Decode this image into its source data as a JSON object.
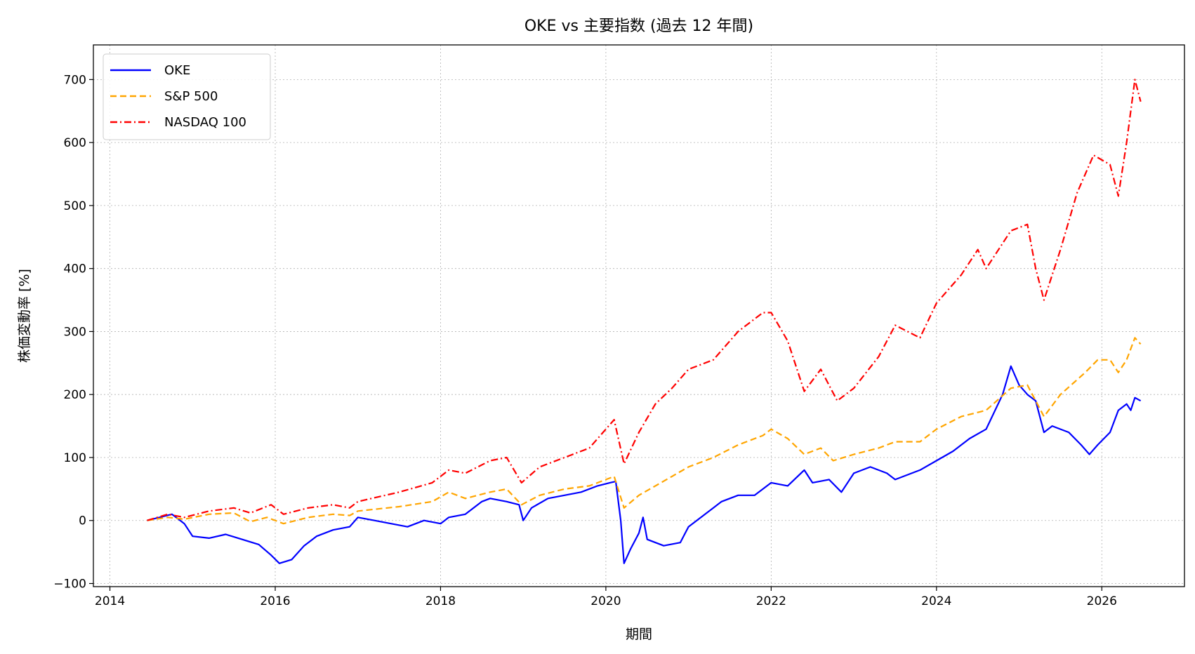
{
  "chart_data": {
    "type": "line",
    "title": "OKE vs 主要指数 (過去 12 年間)",
    "xlabel": "期間",
    "ylabel": "株価変動率 [%]",
    "xlim": [
      2013.8,
      2027.0
    ],
    "ylim": [
      -105,
      755
    ],
    "xticks": [
      2014,
      2016,
      2018,
      2020,
      2022,
      2024,
      2026
    ],
    "yticks": [
      -100,
      0,
      100,
      200,
      300,
      400,
      500,
      600,
      700
    ],
    "grid": true,
    "legend_position": "top-left",
    "series": [
      {
        "name": "OKE",
        "color": "#0000ff",
        "style": "solid",
        "points": [
          [
            2014.45,
            0
          ],
          [
            2014.6,
            5
          ],
          [
            2014.75,
            10
          ],
          [
            2014.9,
            -5
          ],
          [
            2015.0,
            -25
          ],
          [
            2015.2,
            -28
          ],
          [
            2015.4,
            -22
          ],
          [
            2015.6,
            -30
          ],
          [
            2015.8,
            -38
          ],
          [
            2015.95,
            -55
          ],
          [
            2016.05,
            -68
          ],
          [
            2016.2,
            -62
          ],
          [
            2016.35,
            -40
          ],
          [
            2016.5,
            -25
          ],
          [
            2016.7,
            -15
          ],
          [
            2016.9,
            -10
          ],
          [
            2017.0,
            5
          ],
          [
            2017.2,
            0
          ],
          [
            2017.4,
            -5
          ],
          [
            2017.6,
            -10
          ],
          [
            2017.8,
            0
          ],
          [
            2018.0,
            -5
          ],
          [
            2018.1,
            5
          ],
          [
            2018.3,
            10
          ],
          [
            2018.5,
            30
          ],
          [
            2018.6,
            35
          ],
          [
            2018.8,
            30
          ],
          [
            2018.95,
            25
          ],
          [
            2019.0,
            0
          ],
          [
            2019.1,
            20
          ],
          [
            2019.3,
            35
          ],
          [
            2019.5,
            40
          ],
          [
            2019.7,
            45
          ],
          [
            2019.9,
            55
          ],
          [
            2020.05,
            60
          ],
          [
            2020.12,
            62
          ],
          [
            2020.18,
            0
          ],
          [
            2020.22,
            -68
          ],
          [
            2020.3,
            -45
          ],
          [
            2020.4,
            -20
          ],
          [
            2020.45,
            5
          ],
          [
            2020.5,
            -30
          ],
          [
            2020.7,
            -40
          ],
          [
            2020.9,
            -35
          ],
          [
            2021.0,
            -10
          ],
          [
            2021.2,
            10
          ],
          [
            2021.4,
            30
          ],
          [
            2021.6,
            40
          ],
          [
            2021.8,
            40
          ],
          [
            2022.0,
            60
          ],
          [
            2022.2,
            55
          ],
          [
            2022.4,
            80
          ],
          [
            2022.5,
            60
          ],
          [
            2022.7,
            65
          ],
          [
            2022.85,
            45
          ],
          [
            2023.0,
            75
          ],
          [
            2023.2,
            85
          ],
          [
            2023.4,
            75
          ],
          [
            2023.5,
            65
          ],
          [
            2023.6,
            70
          ],
          [
            2023.8,
            80
          ],
          [
            2024.0,
            95
          ],
          [
            2024.2,
            110
          ],
          [
            2024.4,
            130
          ],
          [
            2024.6,
            145
          ],
          [
            2024.8,
            200
          ],
          [
            2024.9,
            245
          ],
          [
            2025.0,
            215
          ],
          [
            2025.1,
            200
          ],
          [
            2025.2,
            190
          ],
          [
            2025.3,
            140
          ],
          [
            2025.4,
            150
          ],
          [
            2025.6,
            140
          ],
          [
            2025.75,
            120
          ],
          [
            2025.85,
            105
          ],
          [
            2025.95,
            120
          ],
          [
            2026.1,
            140
          ],
          [
            2026.2,
            175
          ],
          [
            2026.3,
            185
          ],
          [
            2026.35,
            175
          ],
          [
            2026.4,
            195
          ],
          [
            2026.47,
            190
          ]
        ]
      },
      {
        "name": "S&P 500",
        "color": "#ffa500",
        "style": "dashed",
        "points": [
          [
            2014.45,
            0
          ],
          [
            2014.7,
            5
          ],
          [
            2014.9,
            2
          ],
          [
            2015.2,
            10
          ],
          [
            2015.5,
            12
          ],
          [
            2015.7,
            -2
          ],
          [
            2015.9,
            5
          ],
          [
            2016.1,
            -5
          ],
          [
            2016.4,
            5
          ],
          [
            2016.7,
            10
          ],
          [
            2016.9,
            8
          ],
          [
            2017.0,
            15
          ],
          [
            2017.5,
            22
          ],
          [
            2017.9,
            30
          ],
          [
            2018.1,
            45
          ],
          [
            2018.3,
            35
          ],
          [
            2018.6,
            45
          ],
          [
            2018.8,
            50
          ],
          [
            2018.98,
            25
          ],
          [
            2019.2,
            40
          ],
          [
            2019.5,
            50
          ],
          [
            2019.8,
            55
          ],
          [
            2020.1,
            70
          ],
          [
            2020.22,
            20
          ],
          [
            2020.4,
            40
          ],
          [
            2020.6,
            55
          ],
          [
            2020.8,
            70
          ],
          [
            2021.0,
            85
          ],
          [
            2021.3,
            100
          ],
          [
            2021.6,
            120
          ],
          [
            2021.9,
            135
          ],
          [
            2022.0,
            145
          ],
          [
            2022.2,
            130
          ],
          [
            2022.4,
            105
          ],
          [
            2022.6,
            115
          ],
          [
            2022.75,
            95
          ],
          [
            2023.0,
            105
          ],
          [
            2023.3,
            115
          ],
          [
            2023.5,
            125
          ],
          [
            2023.8,
            125
          ],
          [
            2024.0,
            145
          ],
          [
            2024.3,
            165
          ],
          [
            2024.6,
            175
          ],
          [
            2024.9,
            210
          ],
          [
            2025.1,
            215
          ],
          [
            2025.3,
            165
          ],
          [
            2025.5,
            200
          ],
          [
            2025.8,
            235
          ],
          [
            2025.95,
            255
          ],
          [
            2026.1,
            255
          ],
          [
            2026.2,
            235
          ],
          [
            2026.3,
            255
          ],
          [
            2026.4,
            290
          ],
          [
            2026.47,
            280
          ]
        ]
      },
      {
        "name": "NASDAQ 100",
        "color": "#ff0000",
        "style": "dashdot",
        "points": [
          [
            2014.45,
            0
          ],
          [
            2014.7,
            10
          ],
          [
            2014.9,
            5
          ],
          [
            2015.2,
            15
          ],
          [
            2015.5,
            20
          ],
          [
            2015.7,
            12
          ],
          [
            2015.95,
            25
          ],
          [
            2016.1,
            10
          ],
          [
            2016.4,
            20
          ],
          [
            2016.7,
            25
          ],
          [
            2016.9,
            20
          ],
          [
            2017.0,
            30
          ],
          [
            2017.5,
            45
          ],
          [
            2017.9,
            60
          ],
          [
            2018.1,
            80
          ],
          [
            2018.3,
            75
          ],
          [
            2018.6,
            95
          ],
          [
            2018.8,
            100
          ],
          [
            2018.98,
            60
          ],
          [
            2019.2,
            85
          ],
          [
            2019.5,
            100
          ],
          [
            2019.8,
            115
          ],
          [
            2020.1,
            160
          ],
          [
            2020.22,
            90
          ],
          [
            2020.4,
            140
          ],
          [
            2020.6,
            185
          ],
          [
            2020.8,
            210
          ],
          [
            2021.0,
            240
          ],
          [
            2021.3,
            255
          ],
          [
            2021.6,
            300
          ],
          [
            2021.9,
            330
          ],
          [
            2022.0,
            330
          ],
          [
            2022.2,
            285
          ],
          [
            2022.4,
            205
          ],
          [
            2022.6,
            240
          ],
          [
            2022.8,
            190
          ],
          [
            2023.0,
            210
          ],
          [
            2023.3,
            260
          ],
          [
            2023.5,
            310
          ],
          [
            2023.8,
            290
          ],
          [
            2024.0,
            345
          ],
          [
            2024.3,
            390
          ],
          [
            2024.5,
            430
          ],
          [
            2024.6,
            400
          ],
          [
            2024.9,
            460
          ],
          [
            2025.1,
            470
          ],
          [
            2025.2,
            400
          ],
          [
            2025.3,
            350
          ],
          [
            2025.5,
            430
          ],
          [
            2025.7,
            520
          ],
          [
            2025.9,
            580
          ],
          [
            2026.1,
            565
          ],
          [
            2026.2,
            515
          ],
          [
            2026.3,
            600
          ],
          [
            2026.4,
            700
          ],
          [
            2026.47,
            665
          ]
        ]
      }
    ]
  }
}
